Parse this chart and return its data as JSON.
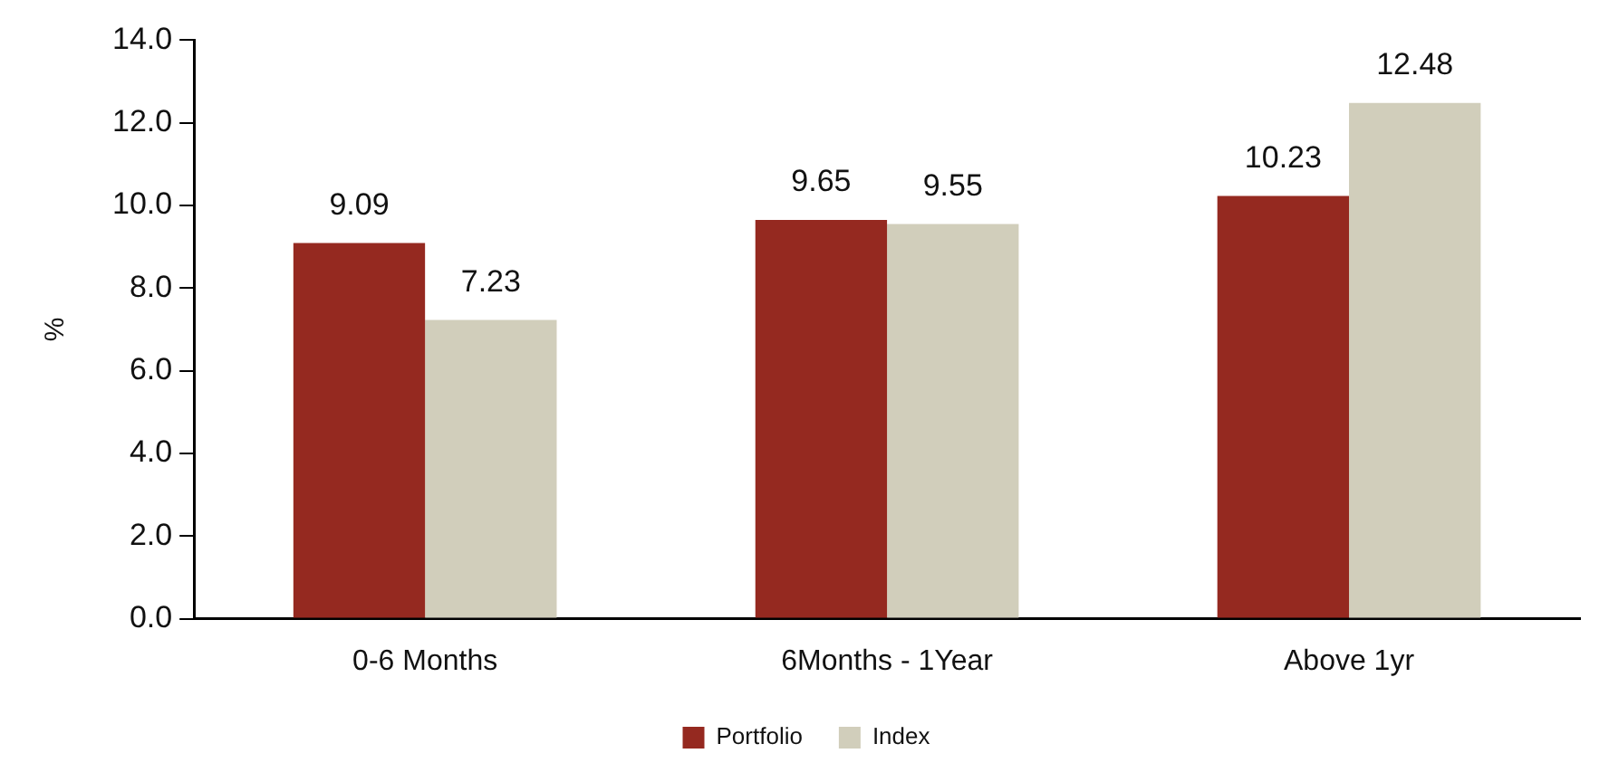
{
  "chart_data": {
    "type": "bar",
    "ylabel": "%",
    "categories": [
      "0-6 Months",
      "6Months - 1Year",
      "Above 1yr"
    ],
    "series": [
      {
        "name": "Portfolio",
        "color": "#952920",
        "values": [
          9.09,
          9.65,
          10.23
        ]
      },
      {
        "name": "Index",
        "color": "#d1cebb",
        "values": [
          7.23,
          9.55,
          12.48
        ]
      }
    ],
    "ylim": [
      0,
      14
    ],
    "yticks": [
      {
        "value": 0,
        "label": "0.0"
      },
      {
        "value": 2,
        "label": "2.0"
      },
      {
        "value": 4,
        "label": "4.0"
      },
      {
        "value": 6,
        "label": "6.0"
      },
      {
        "value": 8,
        "label": "8.0"
      },
      {
        "value": 10,
        "label": "10.0"
      },
      {
        "value": 12,
        "label": "12.0"
      },
      {
        "value": 14,
        "label": "14.0"
      }
    ],
    "data_labels": true,
    "grid": false,
    "legend": "bottom"
  }
}
